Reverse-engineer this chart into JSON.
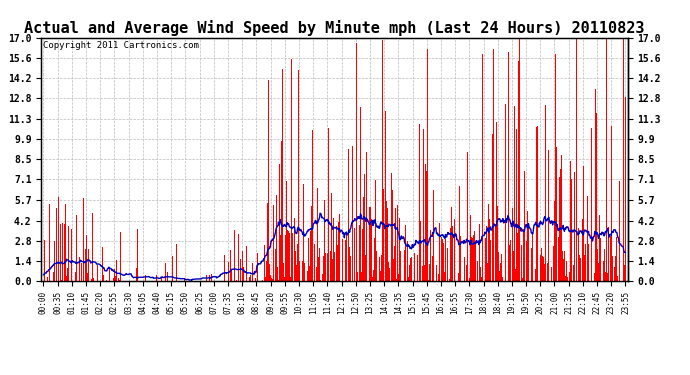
{
  "title": "Actual and Average Wind Speed by Minute mph (Last 24 Hours) 20110823",
  "copyright": "Copyright 2011 Cartronics.com",
  "yticks": [
    0.0,
    1.4,
    2.8,
    4.2,
    5.7,
    7.1,
    8.5,
    9.9,
    11.3,
    12.8,
    14.2,
    15.6,
    17.0
  ],
  "ylim": [
    0.0,
    17.0
  ],
  "bar_color": "#ff0000",
  "line_color": "#0000bb",
  "background_color": "#ffffff",
  "grid_color": "#bbbbbb",
  "title_fontsize": 11,
  "copyright_fontsize": 6.5,
  "xtick_labels": [
    "00:00",
    "00:35",
    "01:10",
    "01:45",
    "02:20",
    "02:55",
    "03:30",
    "04:05",
    "04:40",
    "05:15",
    "05:50",
    "06:25",
    "07:00",
    "07:35",
    "08:10",
    "08:45",
    "09:20",
    "09:55",
    "10:30",
    "11:05",
    "11:40",
    "12:15",
    "12:50",
    "13:25",
    "14:00",
    "14:35",
    "15:10",
    "15:45",
    "16:20",
    "16:55",
    "17:30",
    "18:05",
    "18:40",
    "19:15",
    "19:50",
    "20:25",
    "21:00",
    "21:35",
    "22:10",
    "22:45",
    "23:20",
    "23:55"
  ]
}
